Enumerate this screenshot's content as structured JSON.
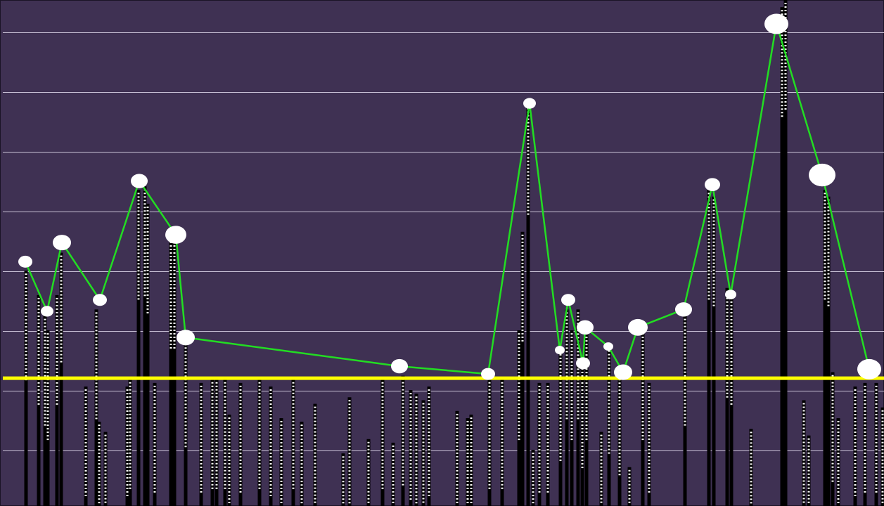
{
  "chart_data": {
    "type": "bar",
    "background": "#3f3153",
    "grid": true,
    "grid_color": "#c9c1d6",
    "xlim": [
      0,
      1257
    ],
    "ylim": [
      0.07,
      8.54
    ],
    "yticks": [
      1,
      2,
      3,
      4,
      5,
      6,
      7,
      8
    ],
    "reference_line": {
      "value": 2.21,
      "color": "#ffff00"
    },
    "series": [
      {
        "type": "bar",
        "color": "#000000",
        "x": [
          37,
          55,
          64,
          68,
          81,
          87,
          122,
          137,
          141,
          150,
          181,
          185,
          197,
          206,
          210,
          220,
          243,
          248,
          264,
          286,
          302,
          308,
          320,
          326,
          342,
          369,
          385,
          400,
          417,
          429,
          448,
          488,
          497,
          524,
          544,
          559,
          573,
          584,
          592,
          602,
          610,
          650,
          665,
          670,
          696,
          714,
          738,
          743,
          751,
          758,
          767,
          779,
          797,
          806,
          813,
          822,
          828,
          834,
          855,
          866,
          881,
          895,
          914,
          923,
          974,
          1008,
          1015,
          1034,
          1040,
          1068,
          1112,
          1117,
          1143,
          1150,
          1173,
          1178,
          1184,
          1192,
          1216,
          1230,
          1246,
          1255
        ],
        "values": [
          4.01,
          3.6,
          3.25,
          3.01,
          3.6,
          4.31,
          2.07,
          3.36,
          1.48,
          1.31,
          2.07,
          2.19,
          5.36,
          5.42,
          5.13,
          2.13,
          4.54,
          4.54,
          2.89,
          2.13,
          2.19,
          2.19,
          2.19,
          1.6,
          2.13,
          2.19,
          2.07,
          1.54,
          2.19,
          1.48,
          1.78,
          0.95,
          1.89,
          1.19,
          2.19,
          1.13,
          2.25,
          2.01,
          1.95,
          1.84,
          2.07,
          1.66,
          1.54,
          1.6,
          2.19,
          2.19,
          3.01,
          4.66,
          6.78,
          1.01,
          2.13,
          2.13,
          2.66,
          3.36,
          3.01,
          3.36,
          2.54,
          3.01,
          1.31,
          2.78,
          2.42,
          0.72,
          3.01,
          2.13,
          3.25,
          5.36,
          5.25,
          3.72,
          3.6,
          1.36,
          8.42,
          8.54,
          1.84,
          1.25,
          5.36,
          5.25,
          2.31,
          1.54,
          2.07,
          2.13,
          2.13,
          1.72
        ]
      },
      {
        "type": "line",
        "color": "#22dd22",
        "marker_color": "#ffffff",
        "x": [
          36,
          67,
          88,
          142,
          198,
          250,
          264,
          568,
          694,
          753,
          796,
          808,
          829,
          832,
          865,
          886,
          907,
          972,
          1013,
          1039,
          1104,
          1169,
          1236
        ],
        "values": [
          4.16,
          3.33,
          4.48,
          3.52,
          5.51,
          4.61,
          2.89,
          2.41,
          2.28,
          6.81,
          2.68,
          3.52,
          2.46,
          3.06,
          2.74,
          2.31,
          3.06,
          3.36,
          5.45,
          3.61,
          8.14,
          5.61,
          2.36
        ],
        "sizes": [
          20,
          18,
          26,
          20,
          24,
          30,
          26,
          24,
          20,
          18,
          14,
          20,
          20,
          24,
          14,
          26,
          28,
          24,
          22,
          16,
          34,
          38,
          34
        ]
      }
    ]
  }
}
